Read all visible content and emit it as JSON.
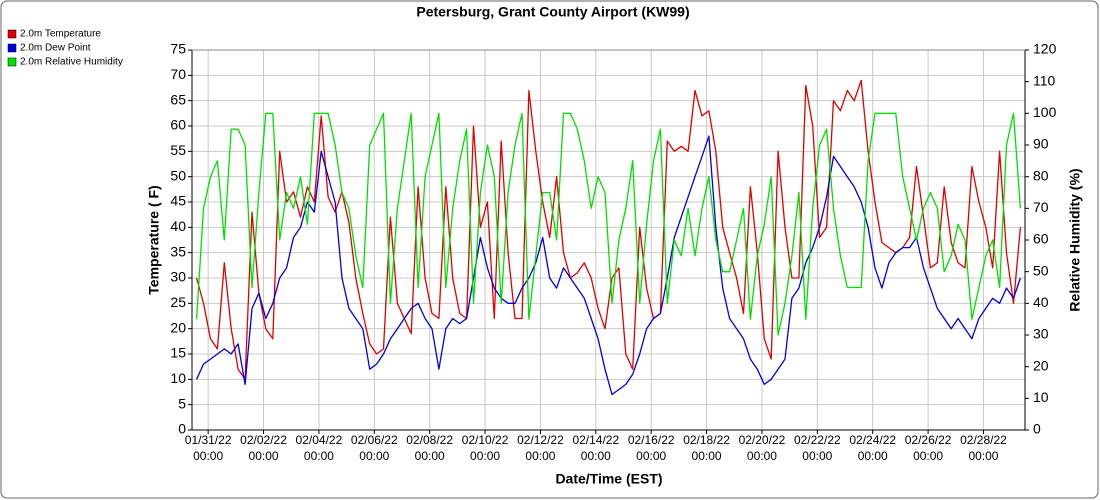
{
  "chart_data": {
    "type": "line",
    "title": "Petersburg, Grant County Airport (KW99)",
    "x_label": "Date/Time (EST)",
    "y_label": "Temperature ( F)",
    "y2_label": "Relative Humidity (%)",
    "legend": "top-left",
    "grid": true,
    "xlim": [
      "2022-01-30T10:00",
      "2022-03-01T12:00"
    ],
    "ylim": [
      0,
      75
    ],
    "y2lim": [
      0,
      120
    ],
    "yticks": [
      0,
      5,
      10,
      15,
      20,
      25,
      30,
      35,
      40,
      45,
      50,
      55,
      60,
      65,
      70,
      75
    ],
    "y2ticks": [
      0,
      10,
      20,
      30,
      40,
      50,
      60,
      70,
      80,
      90,
      100,
      110,
      120
    ],
    "xticks": [
      {
        "value": "2022-01-31T00:00",
        "label": "01/31/22\n00:00"
      },
      {
        "value": "2022-02-02T00:00",
        "label": "02/02/22\n00:00"
      },
      {
        "value": "2022-02-04T00:00",
        "label": "02/04/22\n00:00"
      },
      {
        "value": "2022-02-06T00:00",
        "label": "02/06/22\n00:00"
      },
      {
        "value": "2022-02-08T00:00",
        "label": "02/08/22\n00:00"
      },
      {
        "value": "2022-02-10T00:00",
        "label": "02/10/22\n00:00"
      },
      {
        "value": "2022-02-12T00:00",
        "label": "02/12/22\n00:00"
      },
      {
        "value": "2022-02-14T00:00",
        "label": "02/14/22\n00:00"
      },
      {
        "value": "2022-02-16T00:00",
        "label": "02/16/22\n00:00"
      },
      {
        "value": "2022-02-18T00:00",
        "label": "02/18/22\n00:00"
      },
      {
        "value": "2022-02-20T00:00",
        "label": "02/20/22\n00:00"
      },
      {
        "value": "2022-02-22T00:00",
        "label": "02/22/22\n00:00"
      },
      {
        "value": "2022-02-24T00:00",
        "label": "02/24/22\n00:00"
      },
      {
        "value": "2022-02-26T00:00",
        "label": "02/26/22\n00:00"
      },
      {
        "value": "2022-02-28T00:00",
        "label": "02/28/22\n00:00"
      }
    ],
    "x": [
      "2022-01-30T14:00",
      "2022-01-30T20:00",
      "2022-01-31T02:00",
      "2022-01-31T08:00",
      "2022-01-31T14:00",
      "2022-01-31T20:00",
      "2022-02-01T02:00",
      "2022-02-01T08:00",
      "2022-02-01T14:00",
      "2022-02-01T20:00",
      "2022-02-02T02:00",
      "2022-02-02T08:00",
      "2022-02-02T14:00",
      "2022-02-02T20:00",
      "2022-02-03T02:00",
      "2022-02-03T08:00",
      "2022-02-03T14:00",
      "2022-02-03T20:00",
      "2022-02-04T02:00",
      "2022-02-04T08:00",
      "2022-02-04T14:00",
      "2022-02-04T20:00",
      "2022-02-05T02:00",
      "2022-02-05T08:00",
      "2022-02-05T14:00",
      "2022-02-05T20:00",
      "2022-02-06T02:00",
      "2022-02-06T08:00",
      "2022-02-06T14:00",
      "2022-02-06T20:00",
      "2022-02-07T02:00",
      "2022-02-07T08:00",
      "2022-02-07T14:00",
      "2022-02-07T20:00",
      "2022-02-08T02:00",
      "2022-02-08T08:00",
      "2022-02-08T14:00",
      "2022-02-08T20:00",
      "2022-02-09T02:00",
      "2022-02-09T08:00",
      "2022-02-09T14:00",
      "2022-02-09T20:00",
      "2022-02-10T02:00",
      "2022-02-10T08:00",
      "2022-02-10T14:00",
      "2022-02-10T20:00",
      "2022-02-11T02:00",
      "2022-02-11T08:00",
      "2022-02-11T14:00",
      "2022-02-11T20:00",
      "2022-02-12T02:00",
      "2022-02-12T08:00",
      "2022-02-12T14:00",
      "2022-02-12T20:00",
      "2022-02-13T02:00",
      "2022-02-13T08:00",
      "2022-02-13T14:00",
      "2022-02-13T20:00",
      "2022-02-14T02:00",
      "2022-02-14T08:00",
      "2022-02-14T14:00",
      "2022-02-14T20:00",
      "2022-02-15T02:00",
      "2022-02-15T08:00",
      "2022-02-15T14:00",
      "2022-02-15T20:00",
      "2022-02-16T02:00",
      "2022-02-16T08:00",
      "2022-02-16T14:00",
      "2022-02-16T20:00",
      "2022-02-17T02:00",
      "2022-02-17T08:00",
      "2022-02-17T14:00",
      "2022-02-17T20:00",
      "2022-02-18T02:00",
      "2022-02-18T08:00",
      "2022-02-18T14:00",
      "2022-02-18T20:00",
      "2022-02-19T02:00",
      "2022-02-19T08:00",
      "2022-02-19T14:00",
      "2022-02-19T20:00",
      "2022-02-20T02:00",
      "2022-02-20T08:00",
      "2022-02-20T14:00",
      "2022-02-20T20:00",
      "2022-02-21T02:00",
      "2022-02-21T08:00",
      "2022-02-21T14:00",
      "2022-02-21T20:00",
      "2022-02-22T02:00",
      "2022-02-22T08:00",
      "2022-02-22T14:00",
      "2022-02-22T20:00",
      "2022-02-23T02:00",
      "2022-02-23T08:00",
      "2022-02-23T14:00",
      "2022-02-23T20:00",
      "2022-02-24T02:00",
      "2022-02-24T08:00",
      "2022-02-24T14:00",
      "2022-02-24T20:00",
      "2022-02-25T02:00",
      "2022-02-25T08:00",
      "2022-02-25T14:00",
      "2022-02-25T20:00",
      "2022-02-26T02:00",
      "2022-02-26T08:00",
      "2022-02-26T14:00",
      "2022-02-26T20:00",
      "2022-02-27T02:00",
      "2022-02-27T08:00",
      "2022-02-27T14:00",
      "2022-02-27T20:00",
      "2022-02-28T02:00",
      "2022-02-28T08:00",
      "2022-02-28T14:00",
      "2022-02-28T20:00",
      "2022-03-01T02:00",
      "2022-03-01T08:00"
    ],
    "series": [
      {
        "name": "2.0m Temperature",
        "color": "#e00000",
        "axis": "y",
        "values": [
          30,
          25,
          18,
          16,
          33,
          20,
          12,
          10,
          43,
          27,
          20,
          18,
          55,
          45,
          47,
          42,
          48,
          45,
          62,
          46,
          43,
          47,
          41,
          30,
          23,
          17,
          15,
          16,
          42,
          25,
          22,
          19,
          48,
          30,
          23,
          22,
          48,
          30,
          23,
          22,
          60,
          40,
          45,
          22,
          57,
          35,
          22,
          22,
          67,
          55,
          45,
          38,
          50,
          35,
          30,
          31,
          33,
          30,
          24,
          20,
          30,
          32,
          15,
          12,
          40,
          28,
          22,
          23,
          57,
          55,
          56,
          55,
          67,
          62,
          63,
          55,
          40,
          35,
          30,
          23,
          48,
          35,
          18,
          14,
          55,
          40,
          30,
          30,
          68,
          60,
          38,
          40,
          65,
          63,
          67,
          65,
          69,
          55,
          45,
          37,
          36,
          35,
          36,
          38,
          52,
          42,
          32,
          33,
          48,
          37,
          33,
          32,
          52,
          45,
          40,
          32,
          55,
          35,
          25,
          40
        ]
      },
      {
        "name": "2.0m Dew Point",
        "color": "#0000e0",
        "axis": "y",
        "values": [
          10,
          13,
          14,
          15,
          16,
          15,
          17,
          9,
          24,
          27,
          22,
          25,
          30,
          32,
          38,
          40,
          45,
          43,
          55,
          50,
          45,
          30,
          24,
          22,
          20,
          12,
          13,
          15,
          18,
          20,
          22,
          24,
          25,
          22,
          20,
          12,
          20,
          22,
          21,
          22,
          30,
          38,
          32,
          28,
          26,
          25,
          25,
          28,
          30,
          33,
          38,
          30,
          28,
          32,
          30,
          28,
          26,
          22,
          18,
          12,
          7,
          8,
          9,
          11,
          15,
          20,
          22,
          23,
          30,
          38,
          42,
          46,
          50,
          54,
          58,
          40,
          28,
          22,
          20,
          18,
          14,
          12,
          9,
          10,
          12,
          14,
          26,
          28,
          33,
          36,
          40,
          46,
          54,
          52,
          50,
          48,
          45,
          40,
          32,
          28,
          33,
          35,
          36,
          36,
          38,
          32,
          28,
          24,
          22,
          20,
          22,
          20,
          18,
          22,
          24,
          26,
          25,
          28,
          26,
          30
        ]
      },
      {
        "name": "2.0m Relative Humidity",
        "color": "#00e000",
        "axis": "y2",
        "values": [
          35,
          70,
          80,
          85,
          60,
          95,
          95,
          90,
          45,
          75,
          100,
          100,
          60,
          75,
          70,
          80,
          65,
          100,
          100,
          100,
          90,
          75,
          70,
          55,
          45,
          90,
          95,
          100,
          40,
          70,
          85,
          100,
          45,
          80,
          90,
          100,
          45,
          70,
          85,
          95,
          40,
          75,
          90,
          80,
          40,
          75,
          90,
          100,
          35,
          55,
          75,
          75,
          60,
          100,
          100,
          95,
          85,
          70,
          80,
          75,
          40,
          60,
          70,
          85,
          40,
          65,
          85,
          95,
          40,
          60,
          55,
          70,
          55,
          70,
          80,
          60,
          50,
          50,
          60,
          70,
          35,
          55,
          65,
          80,
          30,
          40,
          55,
          75,
          35,
          70,
          90,
          95,
          70,
          55,
          45,
          45,
          45,
          85,
          100,
          100,
          100,
          100,
          80,
          70,
          60,
          70,
          75,
          70,
          50,
          55,
          65,
          60,
          35,
          45,
          55,
          60,
          45,
          90,
          100,
          70
        ]
      }
    ]
  }
}
